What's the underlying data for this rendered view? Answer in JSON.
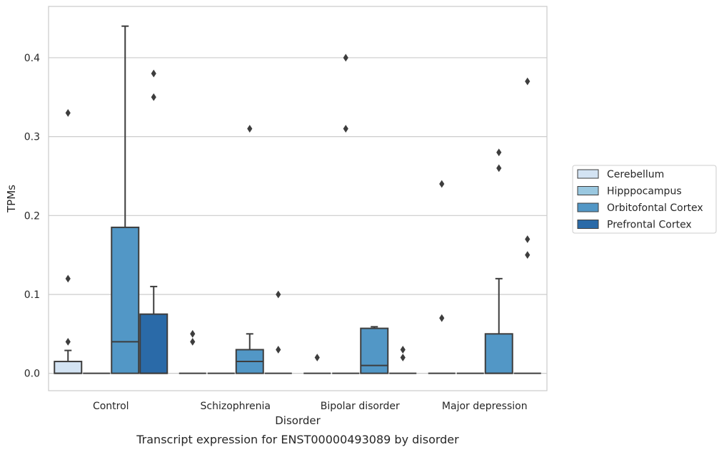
{
  "chart_data": {
    "type": "box",
    "title": "",
    "caption": "Transcript expression for ENST00000493089 by disorder",
    "xlabel": "Disorder",
    "ylabel": "TPMs",
    "ylim": [
      -0.022,
      0.465
    ],
    "yticks": [
      0.0,
      0.1,
      0.2,
      0.3,
      0.4
    ],
    "ytick_labels": [
      "0.0",
      "0.1",
      "0.2",
      "0.3",
      "0.4"
    ],
    "categories": [
      "Control",
      "Schizophrenia",
      "Bipolar disorder",
      "Major depression"
    ],
    "grid": "horizontal",
    "legend_position": "right",
    "series": [
      {
        "name": "Cerebellum",
        "color": "#d3e3f3",
        "boxes": [
          {
            "q1": 0.0,
            "median": 0.0,
            "q3": 0.015,
            "whisker_low": 0.0,
            "whisker_high": 0.029,
            "outliers": [
              0.04,
              0.12,
              0.33
            ]
          },
          {
            "q1": 0.0,
            "median": 0.0,
            "q3": 0.0,
            "whisker_low": 0.0,
            "whisker_high": 0.0,
            "outliers": [
              0.04,
              0.05
            ]
          },
          {
            "q1": 0.0,
            "median": 0.0,
            "q3": 0.0,
            "whisker_low": 0.0,
            "whisker_high": 0.0,
            "outliers": [
              0.02
            ]
          },
          {
            "q1": 0.0,
            "median": 0.0,
            "q3": 0.0,
            "whisker_low": 0.0,
            "whisker_high": 0.0,
            "outliers": [
              0.07,
              0.24
            ]
          }
        ]
      },
      {
        "name": "Hipppocampus",
        "color": "#9ac8e0",
        "boxes": [
          {
            "q1": 0.0,
            "median": 0.0,
            "q3": 0.0,
            "whisker_low": 0.0,
            "whisker_high": 0.0,
            "outliers": []
          },
          {
            "q1": 0.0,
            "median": 0.0,
            "q3": 0.0,
            "whisker_low": 0.0,
            "whisker_high": 0.0,
            "outliers": []
          },
          {
            "q1": 0.0,
            "median": 0.0,
            "q3": 0.0,
            "whisker_low": 0.0,
            "whisker_high": 0.0,
            "outliers": [
              0.31,
              0.4
            ]
          },
          {
            "q1": 0.0,
            "median": 0.0,
            "q3": 0.0,
            "whisker_low": 0.0,
            "whisker_high": 0.0,
            "outliers": []
          }
        ]
      },
      {
        "name": "Orbitofontal Cortex",
        "color": "#5297c6",
        "boxes": [
          {
            "q1": 0.0,
            "median": 0.04,
            "q3": 0.185,
            "whisker_low": 0.0,
            "whisker_high": 0.44,
            "outliers": []
          },
          {
            "q1": 0.0,
            "median": 0.015,
            "q3": 0.03,
            "whisker_low": 0.0,
            "whisker_high": 0.05,
            "outliers": [
              0.31
            ]
          },
          {
            "q1": 0.0,
            "median": 0.01,
            "q3": 0.057,
            "whisker_low": 0.0,
            "whisker_high": 0.059,
            "outliers": []
          },
          {
            "q1": 0.0,
            "median": 0.0,
            "q3": 0.05,
            "whisker_low": 0.0,
            "whisker_high": 0.12,
            "outliers": [
              0.26,
              0.28
            ]
          }
        ]
      },
      {
        "name": "Prefrontal Cortex",
        "color": "#2a6aa8",
        "boxes": [
          {
            "q1": 0.0,
            "median": 0.0,
            "q3": 0.075,
            "whisker_low": 0.0,
            "whisker_high": 0.11,
            "outliers": [
              0.35,
              0.38
            ]
          },
          {
            "q1": 0.0,
            "median": 0.0,
            "q3": 0.0,
            "whisker_low": 0.0,
            "whisker_high": 0.0,
            "outliers": [
              0.03,
              0.1
            ]
          },
          {
            "q1": 0.0,
            "median": 0.0,
            "q3": 0.0,
            "whisker_low": 0.0,
            "whisker_high": 0.0,
            "outliers": [
              0.02,
              0.03
            ]
          },
          {
            "q1": 0.0,
            "median": 0.0,
            "q3": 0.0,
            "whisker_low": 0.0,
            "whisker_high": 0.0,
            "outliers": [
              0.15,
              0.17,
              0.37
            ]
          }
        ]
      }
    ]
  }
}
